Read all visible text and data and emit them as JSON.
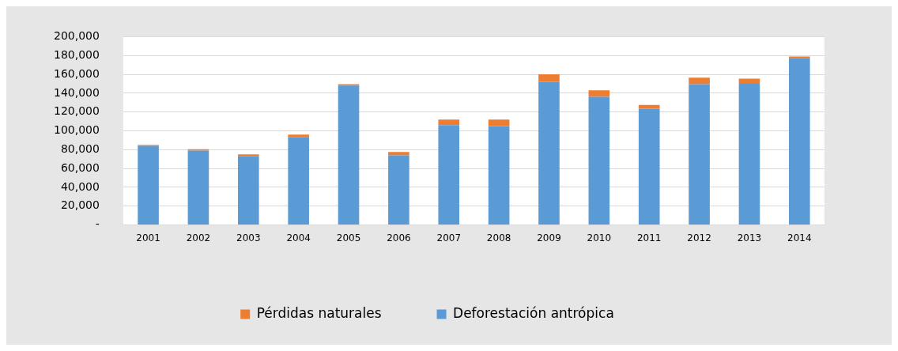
{
  "chart_data": {
    "type": "bar",
    "stacked": true,
    "categories": [
      "2001",
      "2002",
      "2003",
      "2004",
      "2005",
      "2006",
      "2007",
      "2008",
      "2009",
      "2010",
      "2011",
      "2012",
      "2013",
      "2014"
    ],
    "series": [
      {
        "name": "Deforestación antrópica",
        "color": "#5b9bd5",
        "values": [
          84000,
          79000,
          73000,
          93000,
          148000,
          74000,
          106000,
          105000,
          152000,
          136000,
          123500,
          149500,
          150000,
          177500
        ]
      },
      {
        "name": "Pérdidas naturales",
        "color": "#ed7d31",
        "values": [
          1000,
          1500,
          2000,
          3000,
          1500,
          3500,
          6000,
          7000,
          8000,
          7000,
          4000,
          7000,
          5500,
          1500
        ]
      }
    ],
    "ylim": [
      0,
      200000
    ],
    "yticks": [
      {
        "value": 0,
        "label": "-"
      },
      {
        "value": 20000,
        "label": "20,000"
      },
      {
        "value": 40000,
        "label": "40,000"
      },
      {
        "value": 60000,
        "label": "60,000"
      },
      {
        "value": 80000,
        "label": "80,000"
      },
      {
        "value": 100000,
        "label": "100,000"
      },
      {
        "value": 120000,
        "label": "120,000"
      },
      {
        "value": 140000,
        "label": "140,000"
      },
      {
        "value": 160000,
        "label": "160,000"
      },
      {
        "value": 180000,
        "label": "180,000"
      },
      {
        "value": 200000,
        "label": "200,000"
      }
    ],
    "grid": "y",
    "legend": "bottom"
  }
}
